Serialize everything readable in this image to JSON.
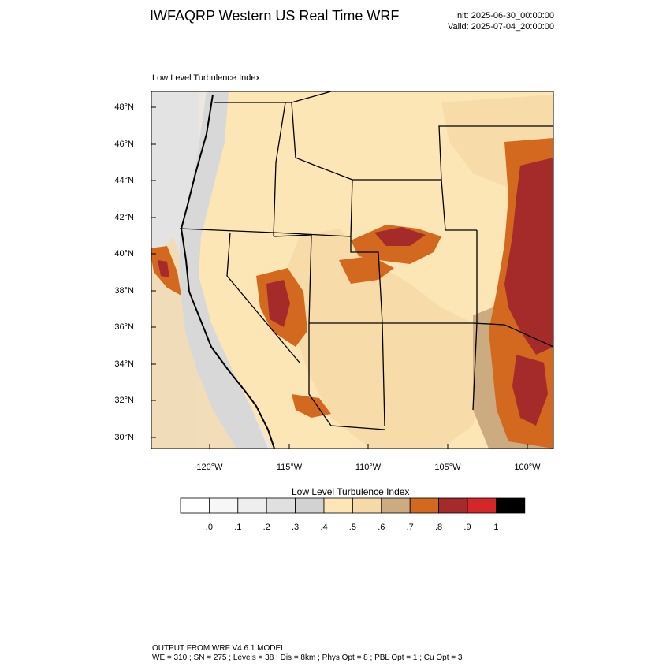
{
  "header": {
    "title": "IWFAQRP Western US Real Time WRF",
    "init": "Init: 2025-06-30_00:00:00",
    "valid": "Valid: 2025-07-04_20:00:00"
  },
  "map": {
    "field_label": "Low Level Turbulence Index",
    "lat_labels": [
      "48°N",
      "46°N",
      "44°N",
      "42°N",
      "40°N",
      "38°N",
      "36°N",
      "34°N",
      "32°N",
      "30°N"
    ],
    "lon_labels": [
      "120°W",
      "115°W",
      "110°W",
      "105°W",
      "100°W"
    ]
  },
  "colorbar": {
    "title": "Low Level Turbulence Index",
    "labels": [
      ".0",
      ".1",
      ".2",
      ".3",
      ".4",
      ".5",
      ".6",
      ".7",
      ".8",
      ".9",
      "1"
    ],
    "colors": [
      "#ffffff",
      "#f7f7f7",
      "#eeeeee",
      "#e0e0e0",
      "#d2d2d2",
      "#fde6b6",
      "#f5d9a6",
      "#ccab80",
      "#d2691e",
      "#a52a2a",
      "#d62728",
      "#000000"
    ]
  },
  "footer": {
    "line1": "OUTPUT FROM WRF V4.6.1 MODEL",
    "line2": "WE = 310 ; SN = 275 ; Levels = 38 ; Dis = 8km ; Phys Opt = 8 ; PBL Opt = 1 ; Cu Opt = 3"
  }
}
